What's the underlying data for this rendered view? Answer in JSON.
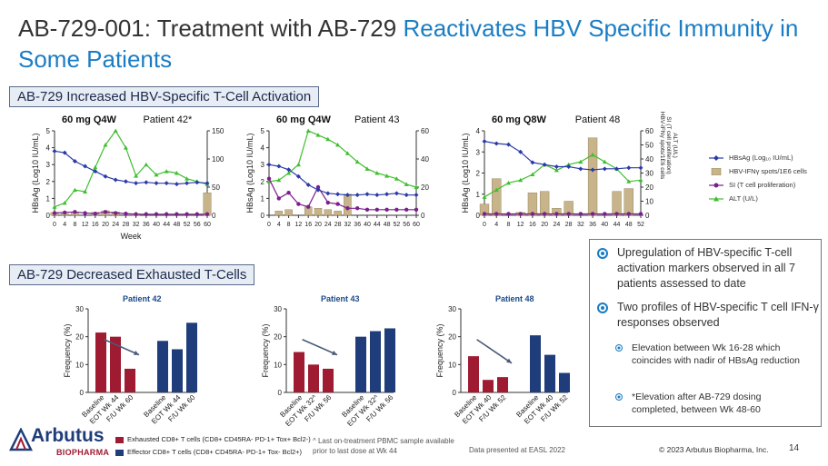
{
  "title": {
    "part1": "AB-729-001: Treatment with AB-729 ",
    "part2": "Reactivates HBV Specific Immunity in Some Patients",
    "accent_color": "#1a7dc4"
  },
  "sections": {
    "activation": "AB-729 Increased HBV-Specific T-Cell Activation",
    "exhausted": "AB-729 Decreased Exhausted T-Cells"
  },
  "line_legend": {
    "hbsag": "HBsAg (Log₁₀ IU/mL)",
    "ifn": "HBV-IFNγ spots/1E6 cells",
    "si": "SI (T cell proliferation)",
    "alt": "ALT (U/L)"
  },
  "right_axis_label_line1": "HBV-IFNγ spots/1E6 cells",
  "right_axis_label_line2": "SI (T cell proliferation)",
  "right_axis_label_line3": "ALT (U/L)",
  "bar_legend": {
    "exhausted": "Exhausted CD8+ T cells",
    "exhausted_markers": "(CD8+ CD45RA- PD-1+ Tox+ Bcl2-)",
    "effector": "Effector CD8+ T cells",
    "effector_markers": "(CD8+ CD45RA- PD-1+ Tox- Bcl2+)"
  },
  "bullets": {
    "b1": "Upregulation of HBV-specific T-cell activation markers observed in all 7 patients assessed to date",
    "b2": "Two profiles of HBV-specific T cell IFN-γ responses observed",
    "b2a": "Elevation between Wk 16-28 which coincides with nadir of HBsAg reduction",
    "b2b": "*Elevation after AB-729 dosing completed, between Wk 48-60"
  },
  "footer": {
    "logo_main": "Arbutus",
    "logo_sub": "BIOPHARMA",
    "footnote": "^ Last on-treatment PBMC sample available prior to last dose at Wk 44",
    "presented": "Data presented at EASL 2022",
    "copyright": "© 2023 Arbutus Biopharma, Inc.",
    "page": "14"
  },
  "colors": {
    "hbsag": "#2b3aa8",
    "ifn_bar": "#c8b48a",
    "si": "#7a1f8c",
    "alt": "#3fbf2f",
    "exhausted": "#9e1b32",
    "effector": "#1f3d7a"
  },
  "chart_data": [
    {
      "type": "line",
      "dose": "60 mg Q4W",
      "patient": "Patient 42*",
      "xlabel": "Week",
      "ylabel": "HBsAg (Log10 IU/mL)",
      "x_ticks": [
        0,
        4,
        8,
        12,
        16,
        20,
        24,
        28,
        32,
        36,
        40,
        44,
        48,
        52,
        56,
        60
      ],
      "ylim": [
        0,
        5
      ],
      "y2lim": [
        0,
        150
      ],
      "y_ticks": [
        0,
        1,
        2,
        3,
        4,
        5
      ],
      "y2_ticks": [
        0,
        50,
        100,
        150
      ],
      "hbsag": {
        "x": [
          0,
          4,
          8,
          12,
          16,
          20,
          24,
          28,
          32,
          36,
          40,
          44,
          48,
          52,
          56,
          60
        ],
        "y": [
          3.8,
          3.7,
          3.2,
          2.9,
          2.6,
          2.3,
          2.1,
          2.0,
          1.9,
          1.95,
          1.9,
          1.9,
          1.85,
          1.9,
          1.95,
          1.9
        ]
      },
      "ifn_bars": {
        "x": [
          0,
          4,
          8,
          16,
          20,
          24,
          32,
          60
        ],
        "y": [
          5,
          3,
          4,
          5,
          8,
          6,
          3,
          40
        ]
      },
      "si": {
        "x": [
          0,
          4,
          8,
          12,
          16,
          20,
          24,
          28,
          32,
          36,
          40,
          44,
          48,
          52,
          56,
          60
        ],
        "y": [
          4,
          5,
          6,
          4,
          3,
          6,
          4,
          3,
          2,
          2,
          2,
          2,
          2,
          2,
          2,
          2
        ]
      },
      "alt": {
        "x": [
          0,
          4,
          8,
          12,
          16,
          20,
          24,
          28,
          32,
          36,
          40,
          44,
          48,
          52,
          56,
          60
        ],
        "y": [
          15,
          22,
          45,
          42,
          85,
          125,
          150,
          120,
          70,
          90,
          72,
          78,
          75,
          65,
          60,
          55
        ]
      }
    },
    {
      "type": "line",
      "dose": "60 mg Q4W",
      "patient": "Patient 43",
      "xlabel": "",
      "ylabel": "HBsAg (Log10 IU/mL)",
      "x_ticks": [
        0,
        4,
        8,
        12,
        16,
        20,
        24,
        28,
        32,
        36,
        40,
        44,
        48,
        52,
        56,
        60
      ],
      "ylim": [
        0,
        5
      ],
      "y2lim": [
        0,
        60
      ],
      "y_ticks": [
        0,
        1,
        2,
        3,
        4,
        5
      ],
      "y2_ticks": [
        0,
        20,
        40,
        60
      ],
      "hbsag": {
        "x": [
          0,
          4,
          8,
          12,
          16,
          20,
          24,
          28,
          32,
          36,
          40,
          44,
          48,
          52,
          56,
          60
        ],
        "y": [
          3.0,
          2.9,
          2.7,
          2.3,
          1.8,
          1.5,
          1.3,
          1.25,
          1.2,
          1.2,
          1.25,
          1.2,
          1.25,
          1.3,
          1.2,
          1.2
        ]
      },
      "ifn_bars": {
        "x": [
          4,
          8,
          16,
          20,
          24,
          28,
          32
        ],
        "y": [
          3,
          4,
          6,
          5,
          4,
          3,
          15
        ]
      },
      "si": {
        "x": [
          0,
          4,
          8,
          12,
          16,
          20,
          24,
          28,
          32,
          36,
          40,
          44,
          48,
          52,
          56,
          60
        ],
        "y": [
          26,
          12,
          16,
          8,
          6,
          20,
          9,
          8,
          5,
          5,
          4,
          4,
          4,
          4,
          4,
          4
        ]
      },
      "alt": {
        "x": [
          0,
          4,
          8,
          12,
          16,
          20,
          24,
          28,
          32,
          36,
          40,
          44,
          48,
          52,
          56,
          60
        ],
        "y": [
          24,
          25,
          30,
          36,
          60,
          57,
          54,
          50,
          44,
          38,
          33,
          30,
          28,
          26,
          22,
          20
        ]
      }
    },
    {
      "type": "line",
      "dose": "60 mg Q8W",
      "patient": "Patient 48",
      "xlabel": "",
      "ylabel": "HBsAg (Log10 IU/mL)",
      "x_ticks": [
        0,
        4,
        8,
        12,
        16,
        20,
        24,
        28,
        32,
        36,
        40,
        44,
        48,
        52
      ],
      "ylim": [
        0,
        4
      ],
      "y2lim": [
        0,
        60
      ],
      "y_ticks": [
        0,
        1,
        2,
        3,
        4
      ],
      "y2_ticks": [
        0,
        10,
        20,
        30,
        40,
        50,
        60
      ],
      "hbsag": {
        "x": [
          0,
          4,
          8,
          12,
          16,
          20,
          24,
          28,
          32,
          36,
          40,
          44,
          48,
          52
        ],
        "y": [
          3.5,
          3.4,
          3.35,
          3.0,
          2.5,
          2.4,
          2.3,
          2.3,
          2.2,
          2.15,
          2.2,
          2.2,
          2.25,
          2.25
        ]
      },
      "ifn_bars": {
        "x": [
          0,
          4,
          12,
          16,
          20,
          24,
          28,
          36,
          44,
          48
        ],
        "y": [
          8,
          26,
          2,
          16,
          17,
          5,
          10,
          55,
          17,
          19
        ]
      },
      "si": {
        "x": [
          0,
          4,
          8,
          12,
          16,
          20,
          24,
          28,
          32,
          36,
          40,
          44,
          48,
          52
        ],
        "y": [
          1,
          1,
          1,
          1,
          1,
          1,
          1,
          1,
          1,
          1,
          1,
          1,
          1,
          1
        ]
      },
      "alt": {
        "x": [
          0,
          4,
          8,
          12,
          16,
          20,
          24,
          28,
          32,
          36,
          40,
          44,
          48,
          52
        ],
        "y": [
          13,
          18,
          23,
          25,
          29,
          36,
          32,
          36,
          38,
          43,
          38,
          33,
          24,
          25
        ]
      }
    },
    {
      "type": "bar",
      "patient": "Patient 42",
      "ylabel": "Frequency (%)",
      "ylim": [
        0,
        30
      ],
      "y_ticks": [
        0,
        10,
        20,
        30
      ],
      "categories": [
        "Baseline",
        "EOT Wk 44",
        "F/U Wk 60",
        "Baseline",
        "EOT Wk 44",
        "F/U Wk 60"
      ],
      "series": [
        {
          "name": "Exhausted",
          "values": [
            21.5,
            20,
            8.5,
            null,
            null,
            null
          ]
        },
        {
          "name": "Effector",
          "values": [
            null,
            null,
            null,
            18.5,
            15.5,
            25
          ]
        }
      ]
    },
    {
      "type": "bar",
      "patient": "Patient 43",
      "ylabel": "Frequency (%)",
      "ylim": [
        0,
        30
      ],
      "y_ticks": [
        0,
        10,
        20,
        30
      ],
      "categories": [
        "Baseline",
        "EOT Wk 32^",
        "F/U Wk 56",
        "Baseline",
        "EOT Wk 32^",
        "F/U Wk 56"
      ],
      "series": [
        {
          "name": "Exhausted",
          "values": [
            14.5,
            10,
            8.5,
            null,
            null,
            null
          ]
        },
        {
          "name": "Effector",
          "values": [
            null,
            null,
            null,
            20,
            22,
            23
          ]
        }
      ]
    },
    {
      "type": "bar",
      "patient": "Patient 48",
      "ylabel": "Frequency (%)",
      "ylim": [
        0,
        30
      ],
      "y_ticks": [
        0,
        10,
        20,
        30
      ],
      "categories": [
        "Baseline",
        "EOT Wk 40",
        "F/U Wk 52",
        "Baseline",
        "EOT Wk 40",
        "F/U Wk 52"
      ],
      "series": [
        {
          "name": "Exhausted",
          "values": [
            13,
            4.5,
            5.5,
            null,
            null,
            null
          ]
        },
        {
          "name": "Effector",
          "values": [
            null,
            null,
            null,
            20.5,
            13.5,
            7
          ]
        }
      ]
    }
  ]
}
